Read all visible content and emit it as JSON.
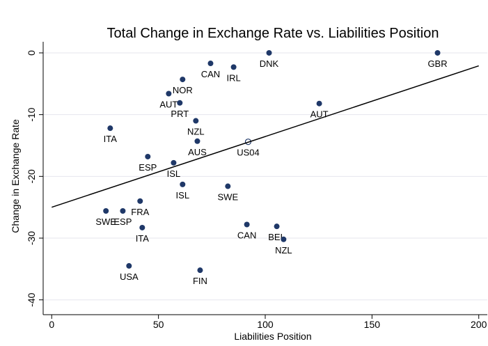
{
  "chart_data": {
    "type": "scatter",
    "title": "Total Change in Exchange Rate vs. Liabilities Position",
    "x_label": "Liabilities Position",
    "y_label": "Change in Exchange Rate",
    "labels": [
      "DNK",
      "GBR",
      "CAN",
      "IRL",
      "NOR",
      "AUT",
      "PRT",
      "AUT",
      "NZL",
      "ITA",
      "AUS",
      "US04",
      "ESP",
      "ISL",
      "ISL",
      "SWE",
      "FRA",
      "SWE",
      "ESP",
      "ITA",
      "CAN",
      "BEL",
      "NZL",
      "USA",
      "FIN"
    ],
    "x": [
      101.8,
      180.7,
      74.4,
      85.2,
      61.3,
      54.8,
      60.0,
      125.3,
      67.5,
      27.4,
      68.2,
      92.0,
      45.0,
      57.1,
      61.3,
      82.5,
      41.4,
      25.4,
      33.3,
      42.4,
      91.4,
      105.4,
      108.6,
      36.2,
      69.5
    ],
    "values": [
      0,
      0,
      -1.7,
      -2.3,
      -4.3,
      -6.6,
      -8.1,
      -8.2,
      -11.0,
      -12.2,
      -14.3,
      -14.4,
      -16.8,
      -17.8,
      -21.3,
      -21.6,
      -24.0,
      -25.6,
      -25.6,
      -28.3,
      -27.8,
      -28.1,
      -30.2,
      -34.5,
      -35.2
    ],
    "filled": [
      true,
      true,
      true,
      true,
      true,
      true,
      true,
      true,
      true,
      true,
      true,
      false,
      true,
      true,
      true,
      true,
      true,
      true,
      true,
      true,
      true,
      true,
      true,
      true,
      true
    ],
    "color": "#1f3868",
    "fit": {
      "x": [
        0,
        200
      ],
      "y": [
        -25.0,
        -2.1
      ],
      "color": "#000000"
    },
    "xlim": [
      -4,
      204
    ],
    "ylim": [
      -42.4,
      1.8
    ],
    "xticks": [
      0,
      50,
      100,
      150,
      200
    ],
    "yticks": [
      0,
      -10,
      -20,
      -30,
      -40
    ],
    "grid": true
  }
}
